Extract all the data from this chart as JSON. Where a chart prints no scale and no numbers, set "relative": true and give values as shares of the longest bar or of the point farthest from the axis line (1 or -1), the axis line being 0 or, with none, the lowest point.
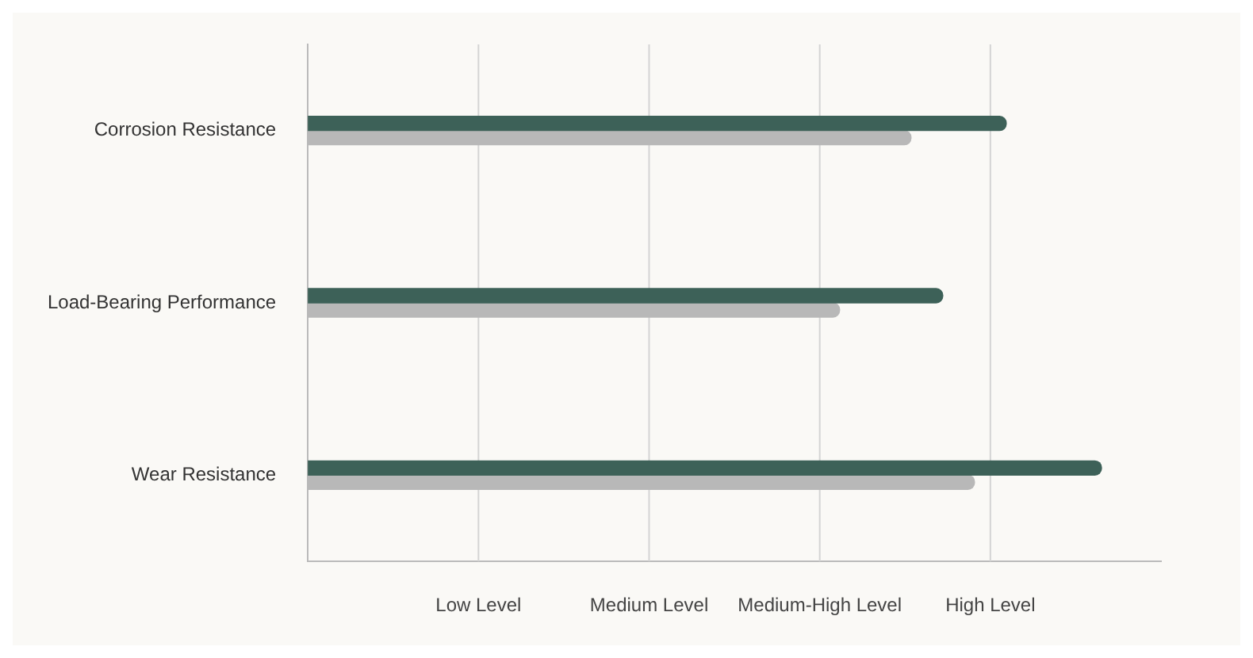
{
  "chart_data": {
    "type": "bar",
    "orientation": "horizontal",
    "relative": true,
    "categories": [
      "Corrosion Resistance",
      "Load-Bearing Performance",
      "Wear Resistance"
    ],
    "series": [
      {
        "color": "#3d6158",
        "values": [
          0.88,
          0.8,
          1
        ]
      },
      {
        "color": "#b8b8b8",
        "values": [
          0.76,
          0.67,
          0.84
        ]
      }
    ],
    "ref_lines": [
      {
        "axis": "x",
        "value": 0.215,
        "label": "Low Level",
        "color": "#d4d4d4"
      },
      {
        "axis": "x",
        "value": 0.43,
        "label": "Medium Level",
        "color": "#d4d4d4"
      },
      {
        "axis": "x",
        "value": 0.645,
        "label": "Medium-High Level",
        "color": "#d4d4d4"
      },
      {
        "axis": "x",
        "value": 0.86,
        "label": "High Level",
        "color": "#d4d4d4"
      }
    ],
    "legend": false
  }
}
